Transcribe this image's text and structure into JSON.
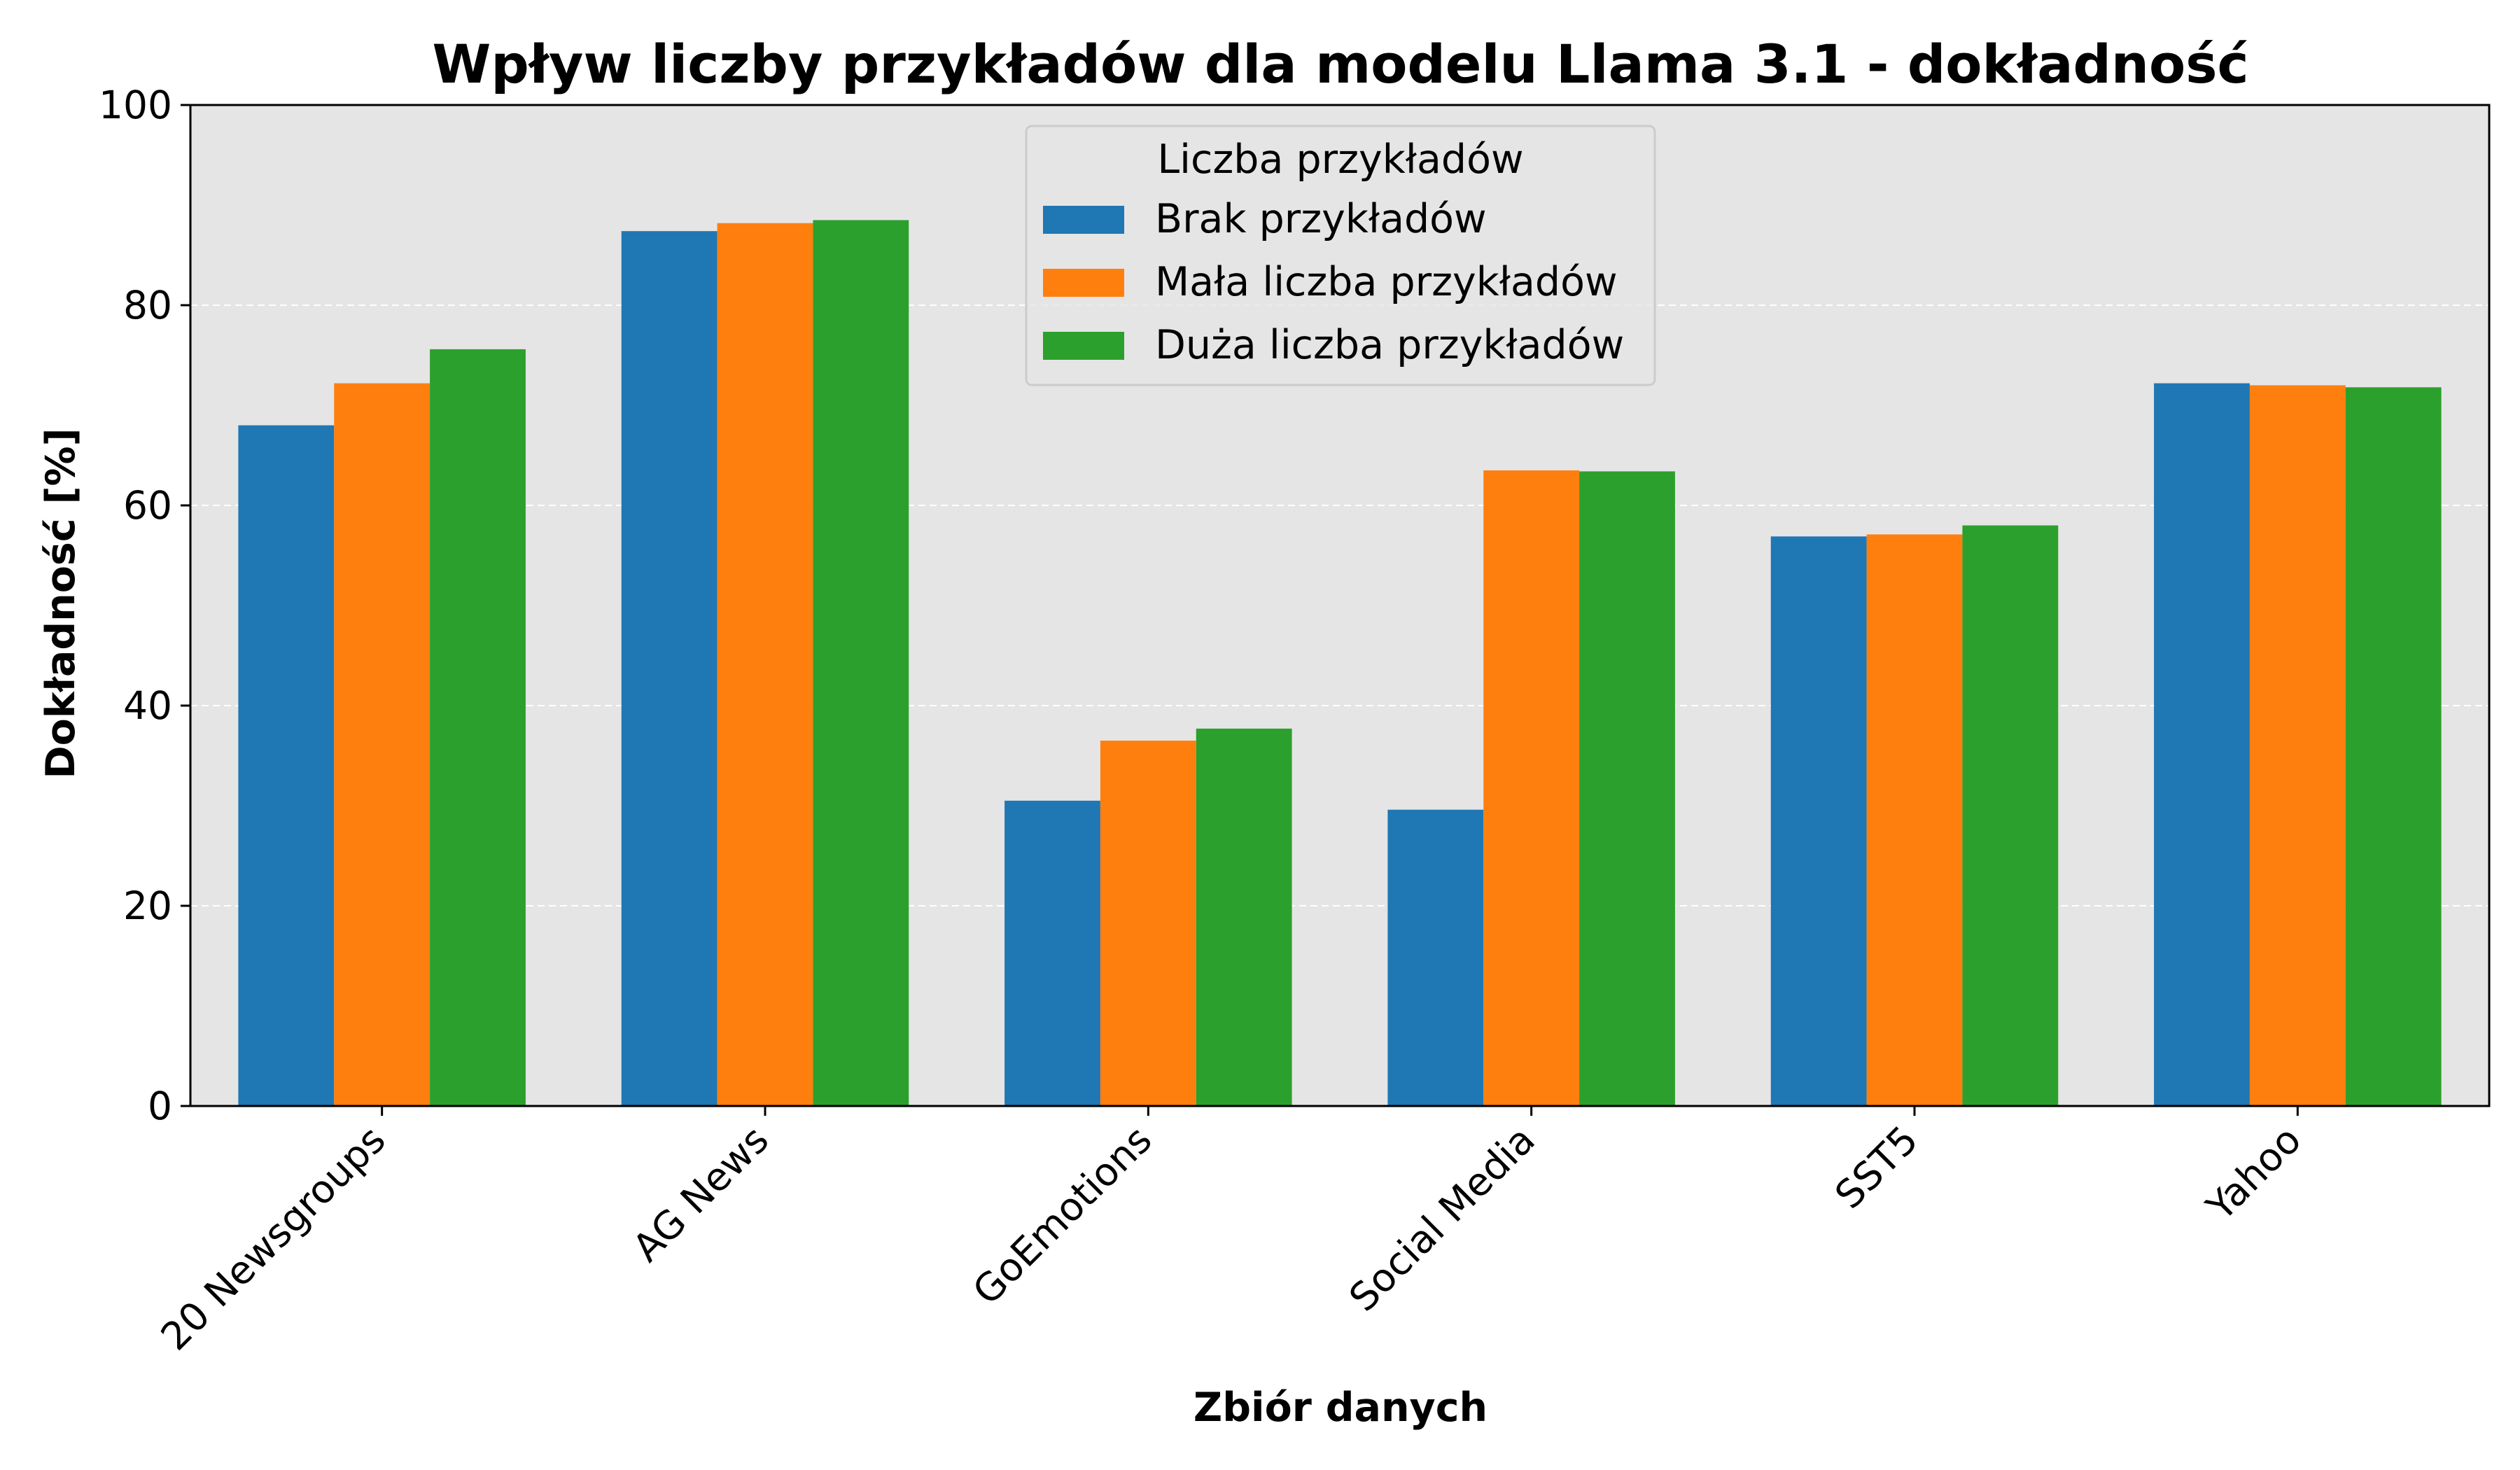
{
  "chart_data": {
    "type": "bar",
    "title": "Wpływ liczby przykładów  dla modelu Llama 3.1 - dokładność",
    "xlabel": "Zbiór danych",
    "ylabel": "Dokładność [%]",
    "ylim": [
      0,
      100
    ],
    "yticks": [
      0,
      20,
      40,
      60,
      80,
      100
    ],
    "grid": "horizontal dashed",
    "legend": {
      "title": "Liczba przykładów",
      "placement": "top-center"
    },
    "categories": [
      "20 Newsgroups",
      "AG News",
      "GoEmotions",
      "Social Media",
      "SST5",
      "Yahoo"
    ],
    "series": [
      {
        "name": "Brak przykładów",
        "color": "#1f77b4",
        "values": [
          68.0,
          87.4,
          30.5,
          29.6,
          56.9,
          72.2
        ]
      },
      {
        "name": "Mała liczba przykładów",
        "color": "#ff7f0e",
        "values": [
          72.2,
          88.2,
          36.5,
          63.5,
          57.1,
          72.0
        ]
      },
      {
        "name": "Duża liczba przykładów",
        "color": "#2ca02c",
        "values": [
          75.6,
          88.5,
          37.7,
          63.4,
          58.0,
          71.8
        ]
      }
    ],
    "colors": {
      "plot_background": "#e5e5e5",
      "grid": "#ffffff"
    }
  }
}
